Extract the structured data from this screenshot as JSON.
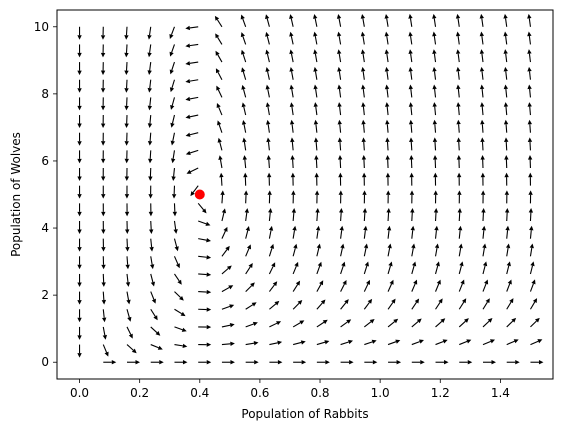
{
  "chart_data": {
    "type": "quiver",
    "title": "",
    "xlabel": "Population of Rabbits",
    "ylabel": "Population of Wolves",
    "xlim": [
      -0.075,
      1.575
    ],
    "ylim": [
      -0.5,
      10.5
    ],
    "x_ticks": [
      0.0,
      0.2,
      0.4,
      0.6,
      0.8,
      1.0,
      1.2,
      1.4
    ],
    "x_tick_labels": [
      "0.0",
      "0.2",
      "0.4",
      "0.6",
      "0.8",
      "1.0",
      "1.2",
      "1.4"
    ],
    "y_ticks": [
      0,
      2,
      4,
      6,
      8,
      10
    ],
    "y_tick_labels": [
      "0",
      "2",
      "4",
      "6",
      "8",
      "10"
    ],
    "grid": false,
    "vector_field": {
      "x_start": 0.0,
      "x_end": 1.5,
      "x_count": 20,
      "y_start": 0.0,
      "y_end": 10.0,
      "y_count": 20,
      "model": "lotka_volterra",
      "params": {
        "alpha": 1.0,
        "beta": 0.2,
        "gamma": 0.4,
        "delta": 1.0
      },
      "arrow_color": "#000000"
    },
    "equilibrium_point": {
      "x": 0.4,
      "y": 5.0,
      "color": "#ff0000"
    }
  }
}
